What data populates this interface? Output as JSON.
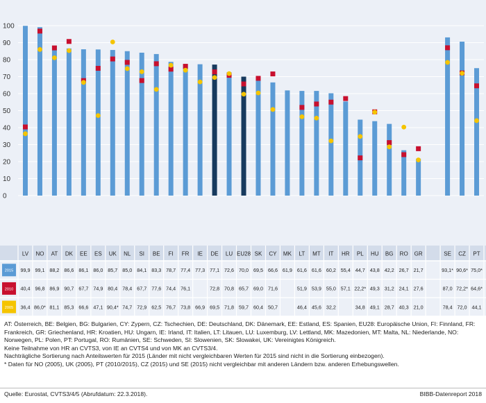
{
  "chart_data": {
    "type": "bar",
    "title": "",
    "xlabel": "",
    "ylabel": "",
    "ylim": [
      0,
      100
    ],
    "yticks": [
      0,
      10,
      20,
      30,
      40,
      50,
      60,
      70,
      80,
      90,
      100
    ],
    "categories": [
      "LV",
      "NO",
      "AT",
      "DK",
      "EE",
      "ES",
      "UK",
      "NL",
      "SI",
      "BE",
      "FI",
      "FR",
      "IE",
      "DE",
      "LU",
      "EU28",
      "SK",
      "CY",
      "MK",
      "LT",
      "MT",
      "IT",
      "HR",
      "PL",
      "HU",
      "BG",
      "RO",
      "GR",
      "",
      "SE",
      "CZ",
      "PT"
    ],
    "highlight_dark": [
      "DE",
      "EU28"
    ],
    "series": [
      {
        "name": "2015",
        "mark": "bar",
        "color": "#5b9bd5",
        "values": [
          99.9,
          99.1,
          88.2,
          86.6,
          86.1,
          86.0,
          85.7,
          85.0,
          84.1,
          83.3,
          78.7,
          77.4,
          77.3,
          77.1,
          72.6,
          70.0,
          69.5,
          66.6,
          61.9,
          61.6,
          61.6,
          60.2,
          55.4,
          44.7,
          43.8,
          42.2,
          26.7,
          21.7,
          null,
          93.1,
          90.6,
          75.0
        ]
      },
      {
        "name": "2010",
        "mark": "square",
        "color": "#c8102e",
        "values": [
          40.4,
          96.8,
          86.9,
          90.7,
          67.7,
          74.9,
          80.4,
          78.4,
          67.7,
          77.6,
          74.4,
          76.1,
          null,
          72.8,
          70.8,
          65.7,
          69.0,
          71.6,
          null,
          51.9,
          53.9,
          55.0,
          57.1,
          22.2,
          49.3,
          31.2,
          24.1,
          27.6,
          null,
          87.0,
          72.2,
          64.6
        ]
      },
      {
        "name": "2005",
        "mark": "dot",
        "color": "#f5c400",
        "values": [
          36.4,
          86.0,
          81.1,
          85.3,
          66.6,
          47.1,
          90.4,
          74.7,
          72.9,
          62.5,
          76.7,
          73.8,
          66.9,
          69.5,
          71.8,
          59.7,
          60.4,
          50.7,
          null,
          46.4,
          45.6,
          32.2,
          null,
          34.8,
          49.1,
          28.7,
          40.3,
          21.0,
          null,
          78.4,
          72.0,
          44.1
        ]
      }
    ]
  },
  "table": {
    "row_labels": [
      "2015",
      "2010",
      "2005"
    ],
    "rows": [
      [
        "99,9",
        "99,1",
        "88,2",
        "86,6",
        "86,1",
        "86,0",
        "85,7",
        "85,0",
        "84,1",
        "83,3",
        "78,7",
        "77,4",
        "77,3",
        "77,1",
        "72,6",
        "70,0",
        "69,5",
        "66,6",
        "61,9",
        "61,6",
        "61,6",
        "60,2",
        "55,4",
        "44,7",
        "43,8",
        "42,2",
        "26,7",
        "21,7",
        "",
        "93,1*",
        "90,6*",
        "75,0*"
      ],
      [
        "40,4",
        "96,8",
        "86,9",
        "90,7",
        "67,7",
        "74,9",
        "80,4",
        "78,4",
        "67,7",
        "77,6",
        "74,4",
        "76,1",
        "",
        "72,8",
        "70,8",
        "65,7",
        "69,0",
        "71,6",
        "",
        "51,9",
        "53,9",
        "55,0",
        "57,1",
        "22,2*",
        "49,3",
        "31,2",
        "24,1",
        "27,6",
        "",
        "87,0",
        "72,2*",
        "64,6*"
      ],
      [
        "36,4",
        "86,0*",
        "81,1",
        "85,3",
        "66,6",
        "47,1",
        "90,4*",
        "74,7",
        "72,9",
        "62,5",
        "76,7",
        "73,8",
        "66,9",
        "69,5",
        "71,8",
        "59,7",
        "60,4",
        "50,7",
        "",
        "46,4",
        "45,6",
        "32,2",
        "",
        "34,8",
        "49,1",
        "28,7",
        "40,3",
        "21,0",
        "",
        "78,4",
        "72,0",
        "44,1"
      ]
    ]
  },
  "notes": [
    "AT: Österreich, BE: Belgien, BG: Bulgarien, CY: Zypern, CZ: Tschechien, DE: Deutschland, DK: Dänemark, EE: Estland, ES: Spanien, EU28: Europäische Union, FI: Finnland, FR:",
    "Frankreich, GR: Griechenland, HR: Kroatien, HU: Ungarn, IE: Irland, IT: Italien, LT: Litauen, LU: Luxemburg, LV: Lettland, MK: Mazedonien, MT: Malta, NL: Niederlande, NO:",
    "Norwegen, PL: Polen, PT: Portugal, RO: Rumänien, SE: Schweden, SI: Slowenien, SK: Slowakei, UK: Vereinigtes Königreich.",
    "Keine Teilnahme von HR an CVTS3, von IE an CVTS4 und von MK an CVTS3/4.",
    "Nachträgliche Sortierung nach Anteilswerten für 2015 (Länder mit nicht vergleichbaren Werten für 2015 sind nicht in die Sortierung einbezogen).",
    "* Daten für NO (2005), UK (2005), PT (2010/2015), CZ (2015) und SE (2015) nicht vergleichbar mit anderen Ländern bzw. anderen Erhebungswellen."
  ],
  "source": "Quelle: Eurostat, CVTS3/4/5 (Abrufdatum: 22.3.2018).",
  "brand": "BIBB-Datenreport 2018"
}
